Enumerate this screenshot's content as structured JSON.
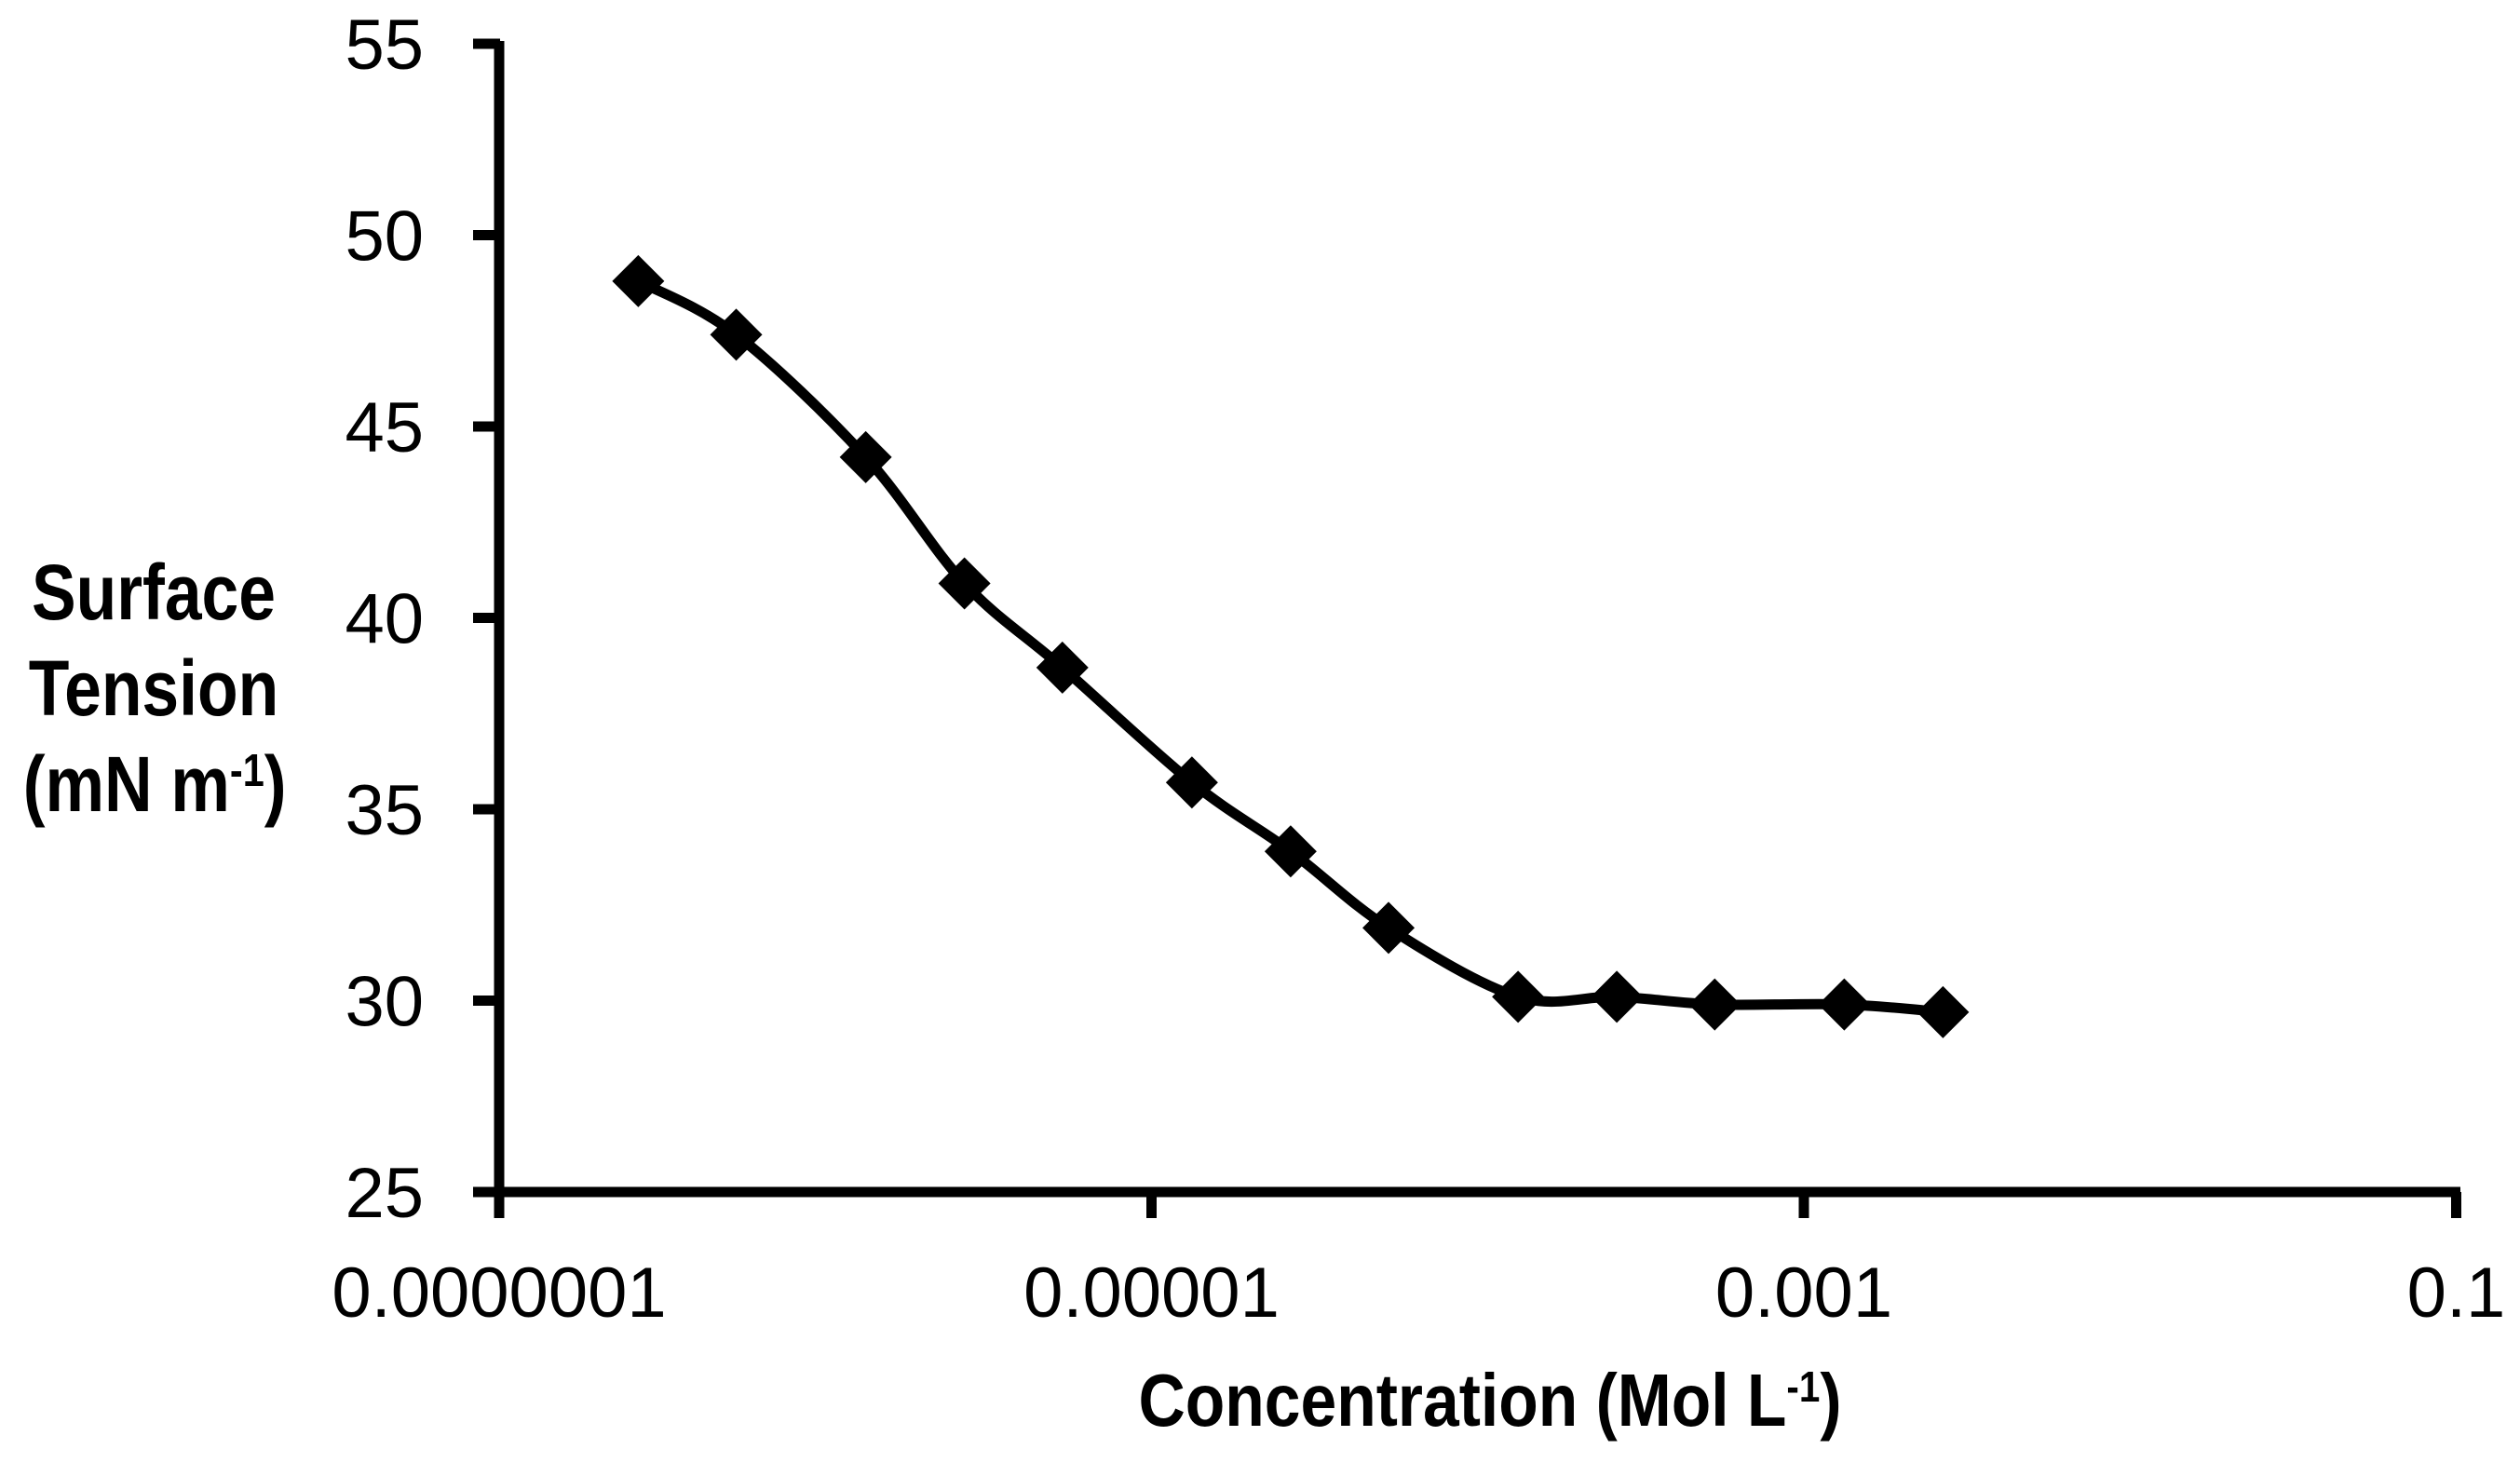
{
  "figure": {
    "background": "#ffffff",
    "line_color": "#000000",
    "y_axis": {
      "title_line1": "Surface",
      "title_line2": "Tension",
      "unit_open": "(mN m",
      "unit_sup": "-1",
      "unit_close": ")"
    },
    "x_axis": {
      "title_main": "Concentration (Mol L",
      "title_sup": "-1",
      "title_close": ")"
    }
  },
  "chart_data": {
    "type": "line",
    "title": "",
    "xlabel": "Concentration (Mol L^-1)",
    "ylabel": "Surface Tension (mN m^-1)",
    "xscale": "log",
    "xlim": [
      1e-07,
      0.1
    ],
    "ylim": [
      25,
      55
    ],
    "grid": false,
    "legend_position": "none",
    "marker": "diamond",
    "marker_color": "#000000",
    "line_color": "#000000",
    "x_ticks": {
      "values": [
        1e-07,
        1e-05,
        0.001,
        0.1
      ],
      "labels": [
        "0.0000001",
        "0.00001",
        "0.001",
        "0.1"
      ]
    },
    "y_ticks": {
      "values": [
        55,
        50,
        45,
        40,
        35,
        30,
        25
      ],
      "labels": [
        "55",
        "50",
        "45",
        "40",
        "35",
        "30",
        "25"
      ]
    },
    "series": [
      {
        "x": [
          2.67e-07,
          5.33e-07,
          1.33e-06,
          2.67e-06,
          5.33e-06,
          1.33e-05,
          2.67e-05,
          5.33e-05,
          0.000133,
          0.000267,
          0.000533,
          0.00133,
          0.00267
        ],
        "y": [
          48.8,
          47.4,
          44.2,
          40.9,
          38.7,
          35.7,
          33.9,
          31.9,
          30.1,
          30.1,
          29.9,
          29.9,
          29.7
        ]
      }
    ]
  }
}
